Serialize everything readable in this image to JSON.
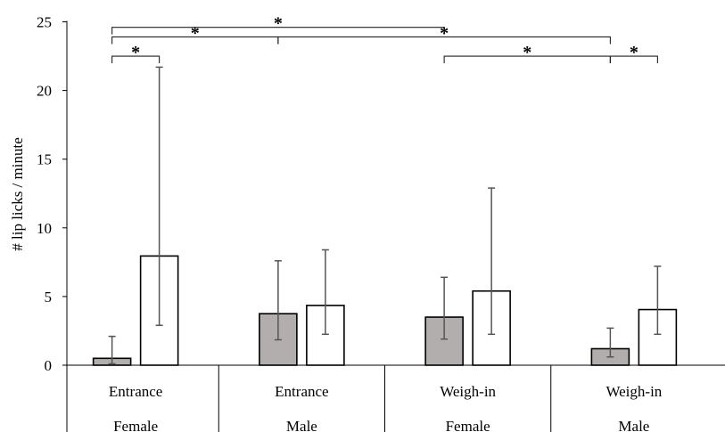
{
  "chart_data": {
    "type": "bar",
    "ylabel": "# lip licks / minute",
    "ylim": [
      0,
      25
    ],
    "yticks": [
      "0",
      "5",
      "10",
      "15",
      "20",
      "25"
    ],
    "ytick_values": [
      0,
      5,
      10,
      15,
      20,
      25
    ],
    "categories": [
      {
        "line1": "Entrance",
        "line2": "Female"
      },
      {
        "line1": "Entrance",
        "line2": "Male"
      },
      {
        "line1": "Weigh-in",
        "line2": "Female"
      },
      {
        "line1": "Weigh-in",
        "line2": "Male"
      }
    ],
    "series": [
      {
        "fill": "#b3aeae",
        "values": [
          0.5,
          3.75,
          3.5,
          1.2
        ],
        "err_low": [
          0.1,
          1.85,
          1.9,
          0.6
        ],
        "err_high": [
          2.1,
          7.6,
          6.4,
          2.7
        ]
      },
      {
        "fill": "#ffffff",
        "values": [
          7.95,
          4.35,
          5.4,
          4.05
        ],
        "err_low": [
          2.9,
          2.25,
          2.25,
          2.25
        ],
        "err_high": [
          21.7,
          8.4,
          12.9,
          7.2
        ]
      }
    ],
    "significance": [
      {
        "label": "*",
        "from": [
          0,
          0
        ],
        "to": [
          0,
          1
        ],
        "y": 22.5
      },
      {
        "label": "*",
        "from": [
          0,
          0
        ],
        "to": [
          1,
          0
        ],
        "y": 23.9
      },
      {
        "label": "*",
        "from": [
          0,
          0
        ],
        "to": [
          2,
          0
        ],
        "y": 24.6
      },
      {
        "label": "*",
        "from": [
          1,
          0
        ],
        "to": [
          3,
          0
        ],
        "y": 23.9
      },
      {
        "label": "*",
        "from": [
          2,
          0
        ],
        "to": [
          3,
          0
        ],
        "y": 22.5
      },
      {
        "label": "*",
        "from": [
          3,
          0
        ],
        "to": [
          3,
          1
        ],
        "y": 22.5
      }
    ],
    "grid": false,
    "legend": "none"
  }
}
